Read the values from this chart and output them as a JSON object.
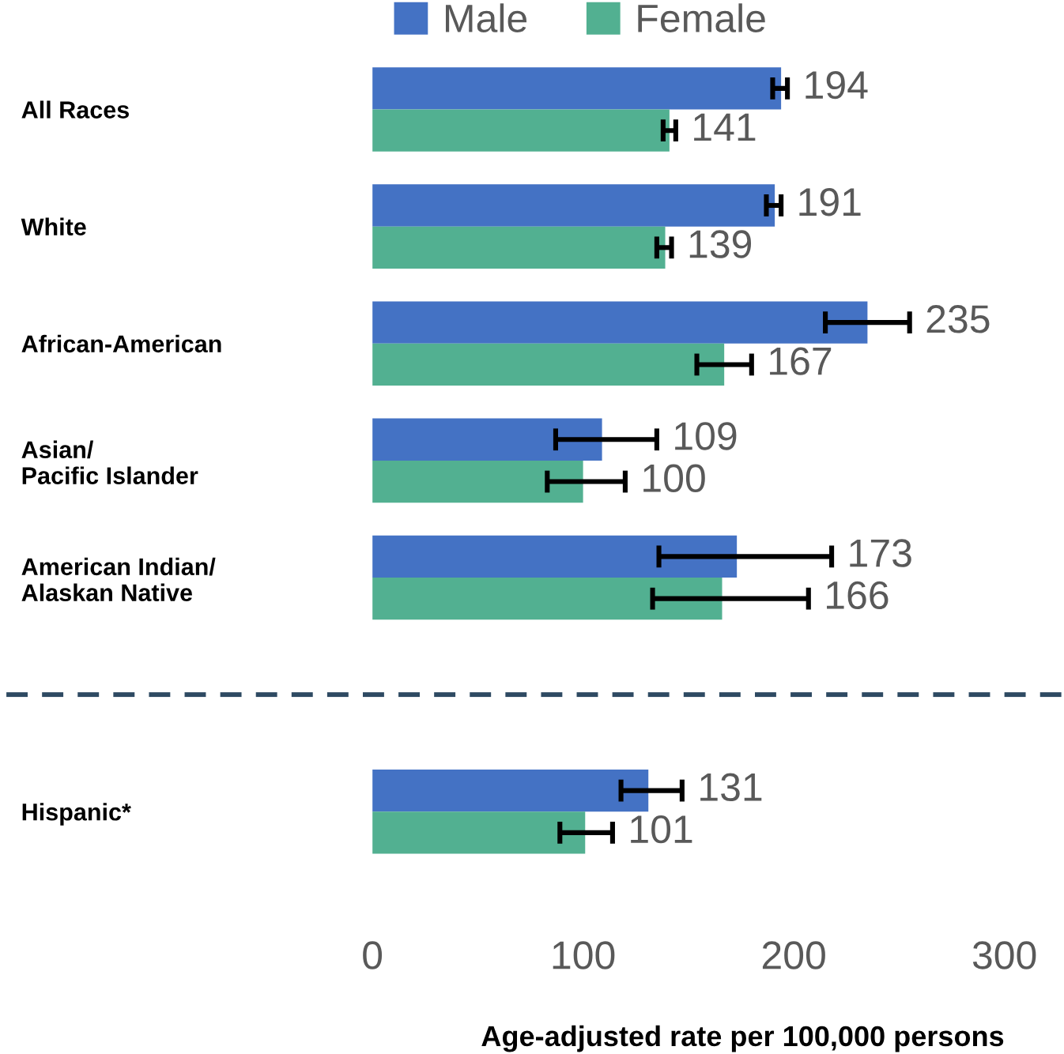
{
  "chart_data": {
    "type": "bar",
    "orientation": "horizontal",
    "xlabel": "Age-adjusted rate per 100,000 persons",
    "categories": [
      "All Races",
      "White",
      "African-American",
      "Asian/\nPacific Islander",
      "American Indian/\nAlaskan Native",
      null,
      "Hispanic*"
    ],
    "series": [
      {
        "name": "Male",
        "color": "#4472c4",
        "values": [
          194,
          191,
          235,
          109,
          173,
          null,
          131
        ],
        "errors": [
          [
            190,
            197
          ],
          [
            187,
            194
          ],
          [
            215,
            255
          ],
          [
            87,
            135
          ],
          [
            136,
            218
          ],
          null,
          [
            118,
            147
          ]
        ]
      },
      {
        "name": "Female",
        "color": "#52b091",
        "values": [
          141,
          139,
          167,
          100,
          166,
          null,
          101
        ],
        "errors": [
          [
            138,
            144
          ],
          [
            135,
            142
          ],
          [
            154,
            180
          ],
          [
            83,
            120
          ],
          [
            133,
            207
          ],
          null,
          [
            89,
            114
          ]
        ]
      }
    ],
    "data_labels": true,
    "xlim": [
      0,
      300
    ],
    "xticks": [
      0,
      100,
      200,
      300
    ],
    "grid": false,
    "legend": "top"
  }
}
